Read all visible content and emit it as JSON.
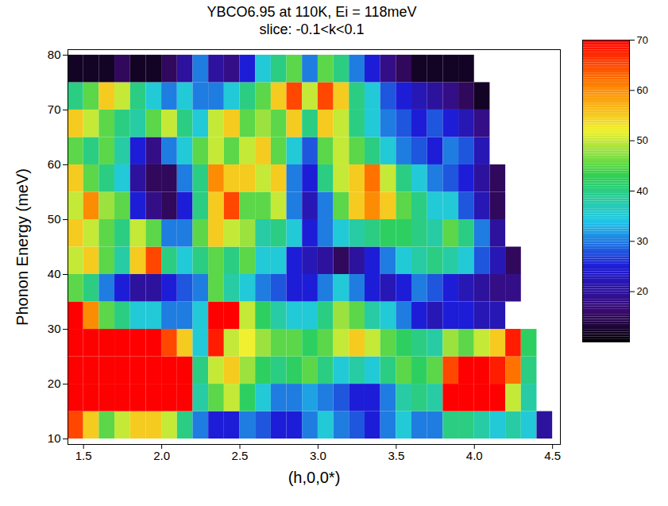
{
  "chart_data": {
    "type": "heatmap",
    "title": "YBCO6.95 at 110K, Ei = 118meV",
    "subtitle": "slice: -0.1<k<0.1",
    "x_label": "(h,0,0*)",
    "y_label": "Phonon Energy (meV)",
    "xlim": [
      1.4,
      4.55
    ],
    "ylim": [
      9,
      81
    ],
    "xticks": [
      {
        "value": 1.5,
        "label": "1.5"
      },
      {
        "value": 2,
        "label": "2.0"
      },
      {
        "value": 2.5,
        "label": "2.5"
      },
      {
        "value": 3,
        "label": "3.0"
      },
      {
        "value": 3.5,
        "label": "3.5"
      },
      {
        "value": 4,
        "label": "4.0"
      },
      {
        "value": 4.5,
        "label": "4.5"
      }
    ],
    "yticks": [
      10,
      20,
      30,
      40,
      50,
      60,
      70,
      80
    ],
    "x": [
      1.45,
      1.55,
      1.65,
      1.75,
      1.85,
      1.95,
      2.05,
      2.15,
      2.25,
      2.35,
      2.45,
      2.55,
      2.65,
      2.75,
      2.85,
      2.95,
      3.05,
      3.15,
      3.25,
      3.35,
      3.45,
      3.55,
      3.65,
      3.75,
      3.85,
      3.95,
      4.05,
      4.15,
      4.25,
      4.35,
      4.45
    ],
    "y": [
      12.5,
      17.5,
      22.5,
      27.5,
      32.5,
      37.5,
      42.5,
      47.5,
      52.5,
      57.5,
      62.5,
      67.5,
      72.5,
      77.5
    ],
    "z": [
      [
        65,
        55,
        45,
        50,
        55,
        55,
        50,
        40,
        30,
        25,
        25,
        30,
        28,
        25,
        25,
        30,
        35,
        30,
        28,
        25,
        30,
        35,
        30,
        30,
        40,
        40,
        38,
        35,
        38,
        35,
        20
      ],
      [
        70,
        70,
        70,
        70,
        70,
        70,
        70,
        70,
        38,
        45,
        50,
        42,
        35,
        30,
        30,
        32,
        30,
        28,
        25,
        25,
        30,
        38,
        40,
        38,
        70,
        70,
        70,
        70,
        50,
        38,
        null
      ],
      [
        70,
        70,
        70,
        70,
        70,
        70,
        70,
        70,
        40,
        50,
        55,
        48,
        42,
        40,
        42,
        45,
        40,
        35,
        38,
        35,
        40,
        45,
        42,
        45,
        65,
        70,
        70,
        68,
        62,
        40,
        null
      ],
      [
        70,
        70,
        70,
        70,
        70,
        70,
        65,
        55,
        35,
        68,
        50,
        52,
        48,
        45,
        45,
        42,
        45,
        50,
        55,
        50,
        45,
        42,
        40,
        38,
        48,
        45,
        50,
        55,
        68,
        42,
        null
      ],
      [
        70,
        60,
        45,
        40,
        35,
        35,
        30,
        30,
        35,
        70,
        70,
        50,
        42,
        38,
        35,
        35,
        40,
        48,
        45,
        38,
        35,
        30,
        25,
        22,
        25,
        25,
        22,
        22,
        null,
        null,
        null
      ],
      [
        45,
        40,
        30,
        25,
        20,
        20,
        25,
        28,
        30,
        45,
        38,
        35,
        30,
        28,
        25,
        25,
        30,
        35,
        30,
        25,
        22,
        25,
        30,
        28,
        25,
        22,
        20,
        18,
        18,
        null,
        null
      ],
      [
        50,
        55,
        45,
        38,
        55,
        65,
        40,
        35,
        40,
        45,
        40,
        45,
        35,
        35,
        25,
        22,
        20,
        15,
        20,
        25,
        30,
        35,
        38,
        40,
        38,
        35,
        28,
        22,
        15,
        null,
        null
      ],
      [
        55,
        50,
        45,
        40,
        50,
        45,
        30,
        30,
        45,
        55,
        50,
        48,
        38,
        40,
        35,
        25,
        30,
        35,
        38,
        40,
        42,
        42,
        40,
        38,
        45,
        40,
        30,
        20,
        null,
        null,
        null
      ],
      [
        50,
        60,
        48,
        45,
        25,
        18,
        15,
        25,
        40,
        55,
        65,
        45,
        45,
        50,
        30,
        22,
        30,
        45,
        55,
        60,
        55,
        45,
        40,
        35,
        35,
        28,
        22,
        15,
        null,
        null,
        null
      ],
      [
        55,
        45,
        40,
        35,
        20,
        15,
        15,
        30,
        40,
        60,
        55,
        55,
        50,
        55,
        30,
        25,
        40,
        50,
        55,
        62,
        50,
        40,
        35,
        30,
        28,
        25,
        20,
        15,
        null,
        null,
        null
      ],
      [
        45,
        40,
        45,
        38,
        25,
        18,
        30,
        35,
        45,
        50,
        45,
        50,
        55,
        45,
        35,
        28,
        45,
        50,
        45,
        40,
        35,
        30,
        28,
        25,
        30,
        28,
        22,
        null,
        null,
        null,
        null
      ],
      [
        55,
        50,
        45,
        40,
        38,
        45,
        50,
        40,
        35,
        50,
        55,
        45,
        48,
        45,
        55,
        40,
        55,
        50,
        40,
        35,
        30,
        28,
        25,
        28,
        25,
        22,
        18,
        null,
        null,
        null,
        null
      ],
      [
        40,
        45,
        55,
        50,
        40,
        35,
        30,
        35,
        30,
        30,
        35,
        40,
        45,
        55,
        65,
        50,
        65,
        55,
        40,
        35,
        28,
        25,
        22,
        20,
        18,
        15,
        12,
        null,
        null,
        null,
        null
      ],
      [
        12,
        12,
        12,
        15,
        12,
        12,
        15,
        20,
        30,
        20,
        18,
        25,
        35,
        40,
        45,
        30,
        45,
        40,
        30,
        25,
        18,
        15,
        12,
        12,
        12,
        12,
        null,
        null,
        null,
        null,
        null
      ]
    ],
    "colorbar_lim": [
      10,
      70
    ],
    "colorbar_ticks": [
      20,
      30,
      40,
      50,
      60,
      70
    ]
  }
}
